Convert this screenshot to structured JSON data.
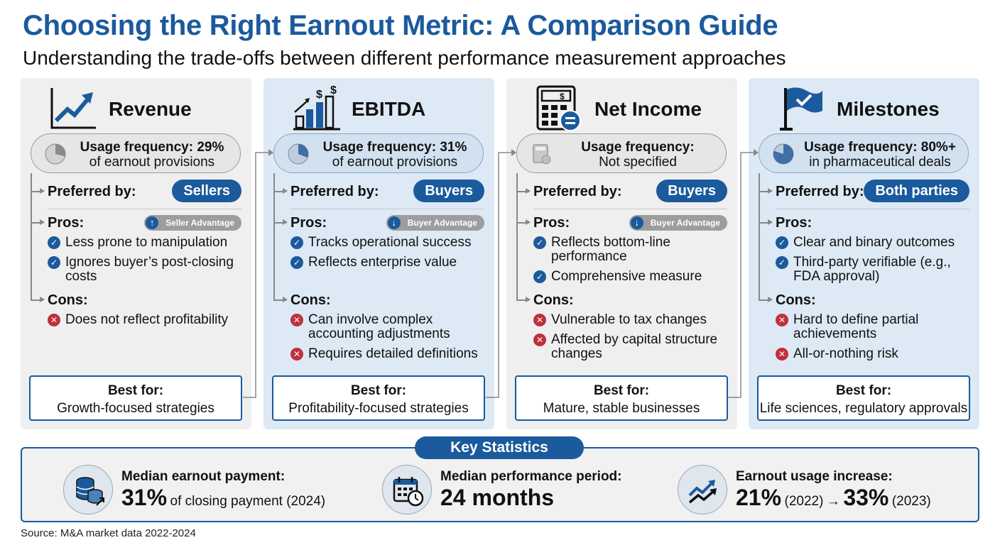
{
  "header": {
    "title": "Choosing the Right Earnout Metric: A Comparison Guide",
    "subtitle": "Understanding the trade-offs between different performance measurement approaches"
  },
  "labels": {
    "preferred_by": "Preferred by:",
    "pros": "Pros:",
    "cons": "Cons:",
    "best_for": "Best for:"
  },
  "cards": [
    {
      "title": "Revenue",
      "icon": "line-chart-icon",
      "usage_line1": "Usage frequency: 29%",
      "usage_line2": "of earnout provisions",
      "usage_fraction": 0.29,
      "preferred": "Sellers",
      "advantage": "Seller Advantage",
      "advantage_arrow": "↑",
      "pros": [
        "Less prone to manipulation",
        "Ignores buyer’s post-closing costs"
      ],
      "cons": [
        "Does not reflect profitability"
      ],
      "best_for": "Growth-focused strategies"
    },
    {
      "title": "EBITDA",
      "icon": "bar-chart-dollar-icon",
      "usage_line1": "Usage frequency: 31%",
      "usage_line2": "of earnout provisions",
      "usage_fraction": 0.31,
      "preferred": "Buyers",
      "advantage": "Buyer Advantage",
      "advantage_arrow": "↓",
      "pros": [
        "Tracks operational success",
        "Reflects enterprise value"
      ],
      "cons": [
        "Can involve complex accounting adjustments",
        "Requires detailed definitions"
      ],
      "best_for": "Profitability-focused strategies"
    },
    {
      "title": "Net Income",
      "icon": "calculator-icon",
      "usage_line1": "Usage frequency:",
      "usage_line2": "Not specified",
      "usage_fraction": 0,
      "preferred": "Buyers",
      "advantage": "Buyer Advantage",
      "advantage_arrow": "↓",
      "pros": [
        "Reflects bottom-line performance",
        "Comprehensive measure"
      ],
      "cons": [
        "Vulnerable to tax changes",
        "Affected by capital structure changes"
      ],
      "best_for": "Mature, stable businesses"
    },
    {
      "title": "Milestones",
      "icon": "flag-icon",
      "usage_line1": "Usage frequency: 80%+",
      "usage_line2": "in pharmaceutical deals",
      "usage_fraction": 0.8,
      "preferred": "Both parties",
      "advantage": "",
      "advantage_arrow": "",
      "pros": [
        "Clear and binary outcomes",
        "Third-party verifiable (e.g., FDA approval)"
      ],
      "cons": [
        "Hard to define partial achievements",
        "All-or-nothing risk"
      ],
      "best_for": "Life sciences, regulatory approvals"
    }
  ],
  "stats": {
    "heading": "Key Statistics",
    "items": [
      {
        "label": "Median earnout payment:",
        "value": "31%",
        "suffix": "of closing payment (2024)",
        "icon": "coins-icon"
      },
      {
        "label": "Median performance period:",
        "value": "24 months",
        "suffix": "",
        "icon": "calendar-clock-icon"
      },
      {
        "label": "Earnout usage increase:",
        "value_a": "21%",
        "year_a": "(2022)",
        "arrow": "→",
        "value_b": "33%",
        "year_b": "(2023)",
        "icon": "trend-arrows-icon"
      }
    ]
  },
  "source": "Source: M&A market data 2022-2024",
  "colors": {
    "accent": "#1b5a9c",
    "cross": "#c0303b",
    "card_gray": "#efefef",
    "card_blue": "#dde9f5"
  }
}
